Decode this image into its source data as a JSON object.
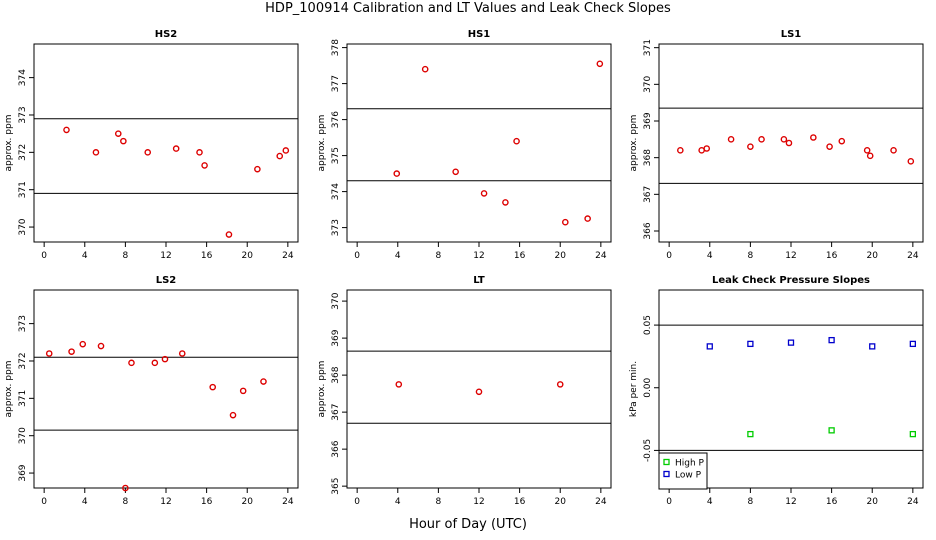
{
  "title": "HDP_100914  Calibration and LT Values and Leak Check Slopes",
  "xlabel": "Hour of Day (UTC)",
  "chart_data": [
    {
      "type": "scatter",
      "title": "HS2",
      "ylabel": "approx. ppm",
      "xlim": [
        -1,
        25
      ],
      "ylim": [
        369.6,
        374.9
      ],
      "xticks": [
        0,
        4,
        8,
        12,
        16,
        20,
        24
      ],
      "yticks": [
        370,
        371,
        372,
        373,
        374
      ],
      "hlines": [
        372.9,
        370.9
      ],
      "series": [
        {
          "color": "#dd0000",
          "x": [
            2.2,
            5.1,
            7.3,
            7.8,
            10.2,
            13.0,
            15.3,
            15.8,
            18.2,
            21.0,
            23.2,
            23.8
          ],
          "y": [
            372.6,
            372.0,
            372.5,
            372.3,
            372.0,
            372.1,
            372.0,
            371.65,
            369.8,
            371.55,
            371.9,
            372.05
          ]
        }
      ]
    },
    {
      "type": "scatter",
      "title": "HS1",
      "ylabel": "approx. ppm",
      "xlim": [
        -1,
        25
      ],
      "ylim": [
        372.6,
        378.1
      ],
      "xticks": [
        0,
        4,
        8,
        12,
        16,
        20,
        24
      ],
      "yticks": [
        373,
        374,
        375,
        376,
        377,
        378
      ],
      "hlines": [
        376.3,
        374.3
      ],
      "series": [
        {
          "color": "#dd0000",
          "x": [
            3.9,
            6.7,
            9.7,
            12.5,
            14.6,
            15.7,
            20.5,
            22.7,
            23.9
          ],
          "y": [
            374.5,
            377.4,
            374.55,
            373.95,
            373.7,
            375.4,
            373.15,
            373.25,
            377.55
          ]
        }
      ]
    },
    {
      "type": "scatter",
      "title": "LS1",
      "ylabel": "approx. ppm",
      "xlim": [
        -1,
        25
      ],
      "ylim": [
        365.7,
        371.1
      ],
      "xticks": [
        0,
        4,
        8,
        12,
        16,
        20,
        24
      ],
      "yticks": [
        366,
        367,
        368,
        369,
        370,
        371
      ],
      "hlines": [
        369.35,
        367.3
      ],
      "series": [
        {
          "color": "#dd0000",
          "x": [
            1.1,
            3.2,
            3.7,
            6.1,
            8.0,
            9.1,
            11.3,
            11.8,
            14.2,
            15.8,
            17.0,
            19.5,
            19.8,
            22.1,
            23.8
          ],
          "y": [
            368.2,
            368.2,
            368.25,
            368.5,
            368.3,
            368.5,
            368.5,
            368.4,
            368.55,
            368.3,
            368.45,
            368.2,
            368.05,
            368.2,
            367.9
          ]
        }
      ]
    },
    {
      "type": "scatter",
      "title": "LS2",
      "ylabel": "approx. ppm",
      "xlim": [
        -1,
        25
      ],
      "ylim": [
        368.6,
        373.9
      ],
      "xticks": [
        0,
        4,
        8,
        12,
        16,
        20,
        24
      ],
      "yticks": [
        369,
        370,
        371,
        372,
        373
      ],
      "hlines": [
        372.1,
        370.15
      ],
      "series": [
        {
          "color": "#dd0000",
          "x": [
            0.5,
            2.7,
            3.8,
            5.6,
            8.0,
            8.6,
            10.9,
            11.9,
            13.6,
            16.6,
            18.6,
            19.6,
            21.6
          ],
          "y": [
            372.2,
            372.25,
            372.45,
            372.4,
            368.6,
            371.95,
            371.95,
            372.05,
            372.2,
            371.3,
            370.55,
            371.2,
            371.45
          ]
        }
      ]
    },
    {
      "type": "scatter",
      "title": "LT",
      "ylabel": "approx. ppm",
      "xlim": [
        -1,
        25
      ],
      "ylim": [
        364.95,
        370.3
      ],
      "xticks": [
        0,
        4,
        8,
        12,
        16,
        20,
        24
      ],
      "yticks": [
        365,
        366,
        367,
        368,
        369,
        370
      ],
      "hlines": [
        368.65,
        366.7
      ],
      "series": [
        {
          "color": "#dd0000",
          "x": [
            4.1,
            12.0,
            20.0
          ],
          "y": [
            367.75,
            367.55,
            367.75
          ]
        }
      ]
    },
    {
      "type": "scatter",
      "title": "Leak Check Pressure Slopes",
      "ylabel": "kPa per min.",
      "xlim": [
        -1,
        25
      ],
      "ylim": [
        -0.08,
        0.078
      ],
      "xticks": [
        0,
        4,
        8,
        12,
        16,
        20,
        24
      ],
      "yticks": [
        -0.05,
        0.0,
        0.05
      ],
      "ytick_labels": [
        "-0.05",
        "0.00",
        "0.05"
      ],
      "hlines": [
        0.05,
        -0.05
      ],
      "legend": "bottom-left",
      "series": [
        {
          "name": "High P",
          "color": "#00cc00",
          "marker": "square",
          "x": [
            8.0,
            16.0,
            24.0
          ],
          "y": [
            -0.037,
            -0.034,
            -0.037
          ]
        },
        {
          "name": "Low P",
          "color": "#0000cc",
          "marker": "square",
          "x": [
            4.0,
            8.0,
            12.0,
            16.0,
            20.0,
            24.0
          ],
          "y": [
            0.033,
            0.035,
            0.036,
            0.038,
            0.033,
            0.035
          ]
        }
      ]
    }
  ]
}
